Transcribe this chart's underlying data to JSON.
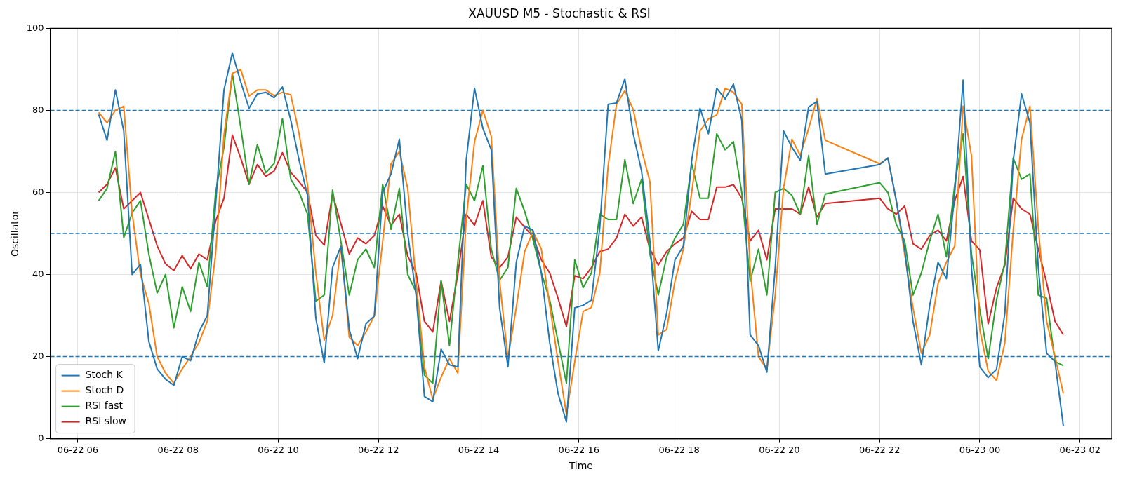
{
  "chart_data": {
    "type": "line",
    "title": "XAUUSD M5 - Stochastic & RSI",
    "xlabel": "Time",
    "ylabel": "Oscillator",
    "x": [
      "--06-22T06:25",
      "--06-22T06:35",
      "--06-22T06:45",
      "--06-22T06:55",
      "--06-22T07:05",
      "--06-22T07:15",
      "--06-22T07:25",
      "--06-22T07:35",
      "--06-22T07:45",
      "--06-22T07:55",
      "--06-22T08:05",
      "--06-22T08:15",
      "--06-22T08:25",
      "--06-22T08:35",
      "--06-22T08:45",
      "--06-22T08:55",
      "--06-22T09:05",
      "--06-22T09:15",
      "--06-22T09:25",
      "--06-22T09:35",
      "--06-22T09:45",
      "--06-22T09:55",
      "--06-22T10:05",
      "--06-22T10:15",
      "--06-22T10:25",
      "--06-22T10:35",
      "--06-22T10:45",
      "--06-22T10:55",
      "--06-22T11:05",
      "--06-22T11:15",
      "--06-22T11:25",
      "--06-22T11:35",
      "--06-22T11:45",
      "--06-22T11:55",
      "--06-22T12:05",
      "--06-22T12:15",
      "--06-22T12:25",
      "--06-22T12:35",
      "--06-22T12:45",
      "--06-22T12:55",
      "--06-22T13:05",
      "--06-22T13:15",
      "--06-22T13:25",
      "--06-22T13:35",
      "--06-22T13:45",
      "--06-22T13:55",
      "--06-22T14:05",
      "--06-22T14:15",
      "--06-22T14:25",
      "--06-22T14:35",
      "--06-22T14:45",
      "--06-22T14:55",
      "--06-22T15:05",
      "--06-22T15:15",
      "--06-22T15:25",
      "--06-22T15:35",
      "--06-22T15:45",
      "--06-22T15:55",
      "--06-22T16:05",
      "--06-22T16:15",
      "--06-22T16:25",
      "--06-22T16:35",
      "--06-22T16:45",
      "--06-22T16:55",
      "--06-22T17:05",
      "--06-22T17:15",
      "--06-22T17:25",
      "--06-22T17:35",
      "--06-22T17:45",
      "--06-22T17:55",
      "--06-22T18:05",
      "--06-22T18:15",
      "--06-22T18:25",
      "--06-22T18:35",
      "--06-22T18:45",
      "--06-22T18:55",
      "--06-22T19:05",
      "--06-22T19:15",
      "--06-22T19:25",
      "--06-22T19:35",
      "--06-22T19:45",
      "--06-22T19:55",
      "--06-22T20:05",
      "--06-22T20:15",
      "--06-22T20:25",
      "--06-22T20:35",
      "--06-22T20:45",
      "--06-22T20:55",
      "--06-22T22:00",
      "--06-22T22:10",
      "--06-22T22:20",
      "--06-22T22:30",
      "--06-22T22:40",
      "--06-22T22:50",
      "--06-22T23:00",
      "--06-22T23:10",
      "--06-22T23:20",
      "--06-22T23:30",
      "--06-22T23:40",
      "--06-22T23:50",
      "--06-23T00:00",
      "--06-23T00:10",
      "--06-23T00:20",
      "--06-23T00:30",
      "--06-23T00:40",
      "--06-23T00:50",
      "--06-23T01:00",
      "--06-23T01:10",
      "--06-23T01:20",
      "--06-23T01:30",
      "--06-23T01:40"
    ],
    "series": [
      {
        "name": "Stoch K",
        "color": "#1f77b4",
        "values": [
          79,
          72.7,
          85,
          75,
          40,
          42.5,
          23.7,
          17,
          14.5,
          13,
          20,
          19,
          26,
          30,
          57,
          85,
          94,
          87,
          80.5,
          84,
          84.4,
          83.1,
          85.7,
          77.6,
          67.8,
          59.3,
          29.3,
          18.5,
          41.7,
          46.9,
          26.6,
          19.5,
          28,
          29.9,
          60,
          64.5,
          73,
          50,
          35,
          10.3,
          9,
          21.8,
          18,
          17.5,
          67.8,
          85.4,
          75.6,
          70.4,
          31.9,
          17.5,
          43,
          51.8,
          50.8,
          40.4,
          23.4,
          11,
          4.1,
          31.9,
          32.5,
          33.8,
          51.5,
          81.5,
          81.8,
          87.7,
          74.3,
          65.2,
          48.2,
          21.4,
          30.6,
          43.6,
          46.9,
          67.8,
          80.5,
          74.3,
          85.4,
          82.8,
          86.4,
          77.6,
          25.3,
          22.7,
          16.2,
          41.7,
          75,
          71,
          67.8,
          80.8,
          82.2,
          64.5,
          66.8,
          68.4,
          58,
          46.2,
          28.6,
          18,
          32.5,
          43,
          39,
          60,
          87.4,
          41.7,
          17.5,
          14.9,
          16.9,
          30.6,
          67.8,
          84,
          77,
          41.7,
          20.8,
          18.8,
          3.1
        ]
      },
      {
        "name": "Stoch D",
        "color": "#ff7f0e",
        "values": [
          79.5,
          77,
          80,
          81,
          55,
          40,
          33,
          20,
          16,
          13.5,
          17,
          20,
          23.4,
          28.6,
          45,
          74,
          89,
          90,
          83.5,
          85,
          85,
          83.6,
          84.4,
          83.8,
          74.3,
          61.9,
          40.4,
          24,
          30,
          47,
          24.7,
          22.7,
          26,
          29.9,
          48,
          67,
          70,
          61,
          38.4,
          17.5,
          9.6,
          15,
          19.5,
          16,
          53.4,
          72.4,
          80,
          73.7,
          38.4,
          19.5,
          32,
          45.6,
          50.5,
          46.2,
          32.5,
          18.8,
          6,
          18.8,
          31,
          32,
          40.4,
          66.5,
          81.5,
          84.8,
          80.2,
          70.4,
          62.6,
          25.3,
          26.6,
          38.4,
          46.2,
          60,
          75,
          77.9,
          78.9,
          85.4,
          84.4,
          81.5,
          41.7,
          20,
          16.9,
          35,
          61,
          73,
          69,
          75.6,
          82.8,
          72.7,
          67,
          68.4,
          58,
          45,
          31.9,
          20.8,
          25.3,
          37.8,
          43,
          47,
          81,
          69,
          26.6,
          16.5,
          14.2,
          23.4,
          50.8,
          73,
          81,
          51.5,
          28.6,
          20,
          11
        ]
      },
      {
        "name": "RSI fast",
        "color": "#2ca02c",
        "values": [
          58,
          61,
          70,
          49,
          55,
          58,
          45,
          35.5,
          40,
          27,
          37,
          31,
          43,
          37,
          60,
          71,
          89,
          76,
          62,
          71.7,
          64.8,
          67,
          78,
          63.2,
          60,
          54.7,
          33.5,
          35,
          60.6,
          48,
          35,
          43.6,
          46.2,
          41.7,
          62,
          51,
          61,
          40,
          35.8,
          15.5,
          13.5,
          38.4,
          22.7,
          43,
          62,
          58,
          66.5,
          46.2,
          38.6,
          41.7,
          61,
          55.4,
          48.5,
          40.4,
          33.8,
          23.7,
          13.5,
          43.6,
          36.8,
          40.4,
          54.7,
          53.4,
          53.4,
          68,
          57.3,
          63.2,
          45,
          35,
          44.3,
          48.9,
          52.2,
          67,
          58.6,
          58.6,
          74.3,
          70.4,
          72.4,
          60,
          38.4,
          46.2,
          35,
          60,
          61,
          59.3,
          54.7,
          69,
          52.2,
          59.6,
          62.4,
          60,
          52.2,
          48.2,
          35,
          40.4,
          48.2,
          54.7,
          44.3,
          62,
          74.3,
          45,
          31.4,
          19.5,
          33.8,
          43,
          68.4,
          63.2,
          64.5,
          35,
          34.2,
          18.8,
          17.8
        ]
      },
      {
        "name": "RSI slow",
        "color": "#d62728",
        "values": [
          60,
          62,
          66,
          56,
          58,
          60,
          53.5,
          47,
          42.6,
          41,
          44.6,
          41.4,
          45,
          43.6,
          53,
          58.6,
          74,
          68.4,
          62,
          66.8,
          63.9,
          65.2,
          69.7,
          64.9,
          62.6,
          60,
          49.5,
          47.2,
          59.6,
          52.4,
          45,
          48.9,
          47.5,
          49.5,
          56.7,
          52,
          54.7,
          44.5,
          40.4,
          28.6,
          26,
          38.4,
          28.6,
          40,
          54.7,
          52,
          58,
          44.3,
          41.7,
          44.3,
          54,
          51.5,
          49.2,
          43.6,
          40.4,
          34.2,
          27.3,
          39.7,
          39,
          41.7,
          45.6,
          46.2,
          48.9,
          54.7,
          51.8,
          54,
          46.2,
          42.3,
          45.6,
          47.5,
          48.9,
          55.4,
          53.4,
          53.4,
          61.3,
          61.3,
          61.9,
          58.6,
          48.2,
          50.8,
          43.6,
          56,
          56,
          56,
          54.7,
          61.3,
          54,
          57.3,
          58.6,
          56,
          54.7,
          56.7,
          47.5,
          46.2,
          49.5,
          50.8,
          48.2,
          58,
          63.9,
          48.2,
          46,
          28,
          36.8,
          42.3,
          58.6,
          56,
          54.7,
          46.2,
          38,
          28.6,
          25.3
        ]
      }
    ],
    "xlim": [
      "--06-22T05:27",
      "--06-23T02:38"
    ],
    "xticks": [
      {
        "value": "--06-22T06:00",
        "label": "06-22 06"
      },
      {
        "value": "--06-22T08:00",
        "label": "06-22 08"
      },
      {
        "value": "--06-22T10:00",
        "label": "06-22 10"
      },
      {
        "value": "--06-22T12:00",
        "label": "06-22 12"
      },
      {
        "value": "--06-22T14:00",
        "label": "06-22 14"
      },
      {
        "value": "--06-22T16:00",
        "label": "06-22 16"
      },
      {
        "value": "--06-22T18:00",
        "label": "06-22 18"
      },
      {
        "value": "--06-22T20:00",
        "label": "06-22 20"
      },
      {
        "value": "--06-22T22:00",
        "label": "06-22 22"
      },
      {
        "value": "--06-23T00:00",
        "label": "06-23 00"
      },
      {
        "value": "--06-23T02:00",
        "label": "06-23 02"
      }
    ],
    "ylim": [
      0,
      100
    ],
    "yticks": [
      0,
      20,
      40,
      60,
      80,
      100
    ],
    "ref_lines": [
      {
        "axis": "y",
        "value": 80,
        "color": "#1f77b4",
        "line_style": "dashed"
      },
      {
        "axis": "y",
        "value": 50,
        "color": "#1f76b4",
        "line_style": "dashed"
      },
      {
        "axis": "y",
        "value": 20,
        "color": "#1f78b4",
        "line_style": "dashed"
      }
    ],
    "grid": true,
    "legend": "bottom left",
    "line_style": "solid"
  }
}
